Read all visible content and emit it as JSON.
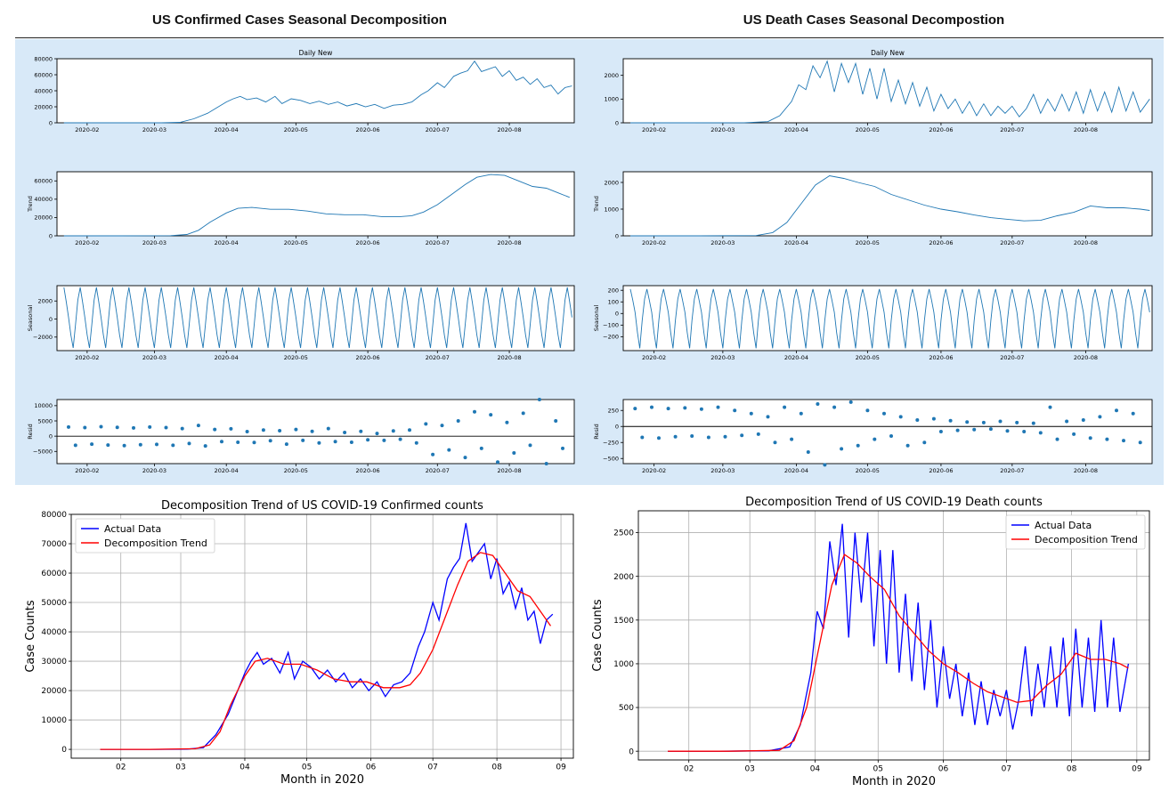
{
  "headings": {
    "left": "US Confirmed Cases Seasonal Decomposition",
    "right": "US Death Cases Seasonal Decompostion"
  },
  "colors": {
    "band": "#d8e9f8",
    "series_small": "#1f77b4",
    "actual": "#0000ff",
    "trend": "#ff0000",
    "grid": "#b0b0b0"
  },
  "chart_data": [
    {
      "id": "confirmed-daily",
      "type": "line",
      "title": "Daily New",
      "ylabel": "",
      "ylim": [
        0,
        80000
      ],
      "yticks": [
        0,
        20000,
        40000,
        60000,
        80000
      ],
      "xticks": [
        "2020-02",
        "2020-03",
        "2020-04",
        "2020-05",
        "2020-06",
        "2020-07",
        "2020-08"
      ],
      "x": [
        "2020-01-22",
        "2020-02-05",
        "2020-02-19",
        "2020-03-04",
        "2020-03-12",
        "2020-03-18",
        "2020-03-24",
        "2020-03-28",
        "2020-04-01",
        "2020-04-04",
        "2020-04-07",
        "2020-04-10",
        "2020-04-14",
        "2020-04-18",
        "2020-04-22",
        "2020-04-25",
        "2020-04-29",
        "2020-05-03",
        "2020-05-07",
        "2020-05-11",
        "2020-05-15",
        "2020-05-19",
        "2020-05-23",
        "2020-05-27",
        "2020-05-31",
        "2020-06-04",
        "2020-06-08",
        "2020-06-12",
        "2020-06-16",
        "2020-06-20",
        "2020-06-24",
        "2020-06-27",
        "2020-07-01",
        "2020-07-04",
        "2020-07-08",
        "2020-07-11",
        "2020-07-14",
        "2020-07-17",
        "2020-07-20",
        "2020-07-23",
        "2020-07-26",
        "2020-07-29",
        "2020-08-01",
        "2020-08-04",
        "2020-08-07",
        "2020-08-10",
        "2020-08-13",
        "2020-08-16",
        "2020-08-19",
        "2020-08-22",
        "2020-08-25",
        "2020-08-28"
      ],
      "y": [
        0,
        0,
        0,
        50,
        600,
        5000,
        12000,
        19000,
        26000,
        30000,
        33000,
        29000,
        31000,
        26000,
        33000,
        24000,
        30000,
        28000,
        24000,
        27000,
        23000,
        26000,
        21000,
        24000,
        20000,
        23000,
        18000,
        22000,
        23000,
        26000,
        35000,
        40000,
        50000,
        44000,
        58000,
        62000,
        65000,
        77000,
        64000,
        67000,
        70000,
        58000,
        65000,
        53000,
        57000,
        48000,
        55000,
        44000,
        47000,
        36000,
        44000,
        46000
      ]
    },
    {
      "id": "confirmed-trend",
      "type": "line",
      "title": "",
      "ylabel": "Trend",
      "ylim": [
        0,
        70000
      ],
      "yticks": [
        0,
        20000,
        40000,
        60000
      ],
      "xticks": [
        "2020-02",
        "2020-03",
        "2020-04",
        "2020-05",
        "2020-06",
        "2020-07",
        "2020-08"
      ],
      "x": [
        "2020-01-22",
        "2020-02-15",
        "2020-03-08",
        "2020-03-15",
        "2020-03-20",
        "2020-03-25",
        "2020-04-01",
        "2020-04-06",
        "2020-04-12",
        "2020-04-20",
        "2020-04-28",
        "2020-05-06",
        "2020-05-14",
        "2020-05-22",
        "2020-05-30",
        "2020-06-07",
        "2020-06-15",
        "2020-06-20",
        "2020-06-25",
        "2020-07-01",
        "2020-07-07",
        "2020-07-13",
        "2020-07-18",
        "2020-07-24",
        "2020-07-30",
        "2020-08-05",
        "2020-08-11",
        "2020-08-17",
        "2020-08-22",
        "2020-08-27"
      ],
      "y": [
        0,
        0,
        200,
        1500,
        6000,
        15000,
        25000,
        30000,
        31000,
        29000,
        29000,
        27000,
        24000,
        23000,
        23000,
        21000,
        21000,
        22000,
        26000,
        34000,
        45000,
        56000,
        64000,
        67000,
        66000,
        60000,
        54000,
        52000,
        47000,
        42000
      ]
    },
    {
      "id": "confirmed-seasonal",
      "type": "line",
      "title": "",
      "ylabel": "Seasonal",
      "ylim": [
        -3500,
        3700
      ],
      "yticks": [
        -2000,
        0,
        2000
      ],
      "xticks": [
        "2020-02",
        "2020-03",
        "2020-04",
        "2020-05",
        "2020-06",
        "2020-07",
        "2020-08"
      ],
      "period_days": 7,
      "amplitude_max": 3500,
      "amplitude_min": -3200
    },
    {
      "id": "confirmed-resid",
      "type": "scatter",
      "title": "",
      "ylabel": "Resid",
      "ylim": [
        -9000,
        12000
      ],
      "yticks": [
        -5000,
        0,
        5000,
        10000
      ],
      "xticks": [
        "2020-02",
        "2020-03",
        "2020-04",
        "2020-05",
        "2020-06",
        "2020-07",
        "2020-08"
      ],
      "x": [
        "2020-01-24",
        "2020-01-27",
        "2020-01-31",
        "2020-02-03",
        "2020-02-07",
        "2020-02-10",
        "2020-02-14",
        "2020-02-17",
        "2020-02-21",
        "2020-02-24",
        "2020-02-28",
        "2020-03-02",
        "2020-03-06",
        "2020-03-09",
        "2020-03-13",
        "2020-03-16",
        "2020-03-20",
        "2020-03-23",
        "2020-03-27",
        "2020-03-30",
        "2020-04-03",
        "2020-04-06",
        "2020-04-10",
        "2020-04-13",
        "2020-04-17",
        "2020-04-20",
        "2020-04-24",
        "2020-04-27",
        "2020-05-01",
        "2020-05-04",
        "2020-05-08",
        "2020-05-11",
        "2020-05-15",
        "2020-05-18",
        "2020-05-22",
        "2020-05-25",
        "2020-05-29",
        "2020-06-01",
        "2020-06-05",
        "2020-06-08",
        "2020-06-12",
        "2020-06-15",
        "2020-06-19",
        "2020-06-22",
        "2020-06-26",
        "2020-06-29",
        "2020-07-03",
        "2020-07-06",
        "2020-07-10",
        "2020-07-13",
        "2020-07-17",
        "2020-07-20",
        "2020-07-24",
        "2020-07-27",
        "2020-07-31",
        "2020-08-03",
        "2020-08-07",
        "2020-08-10",
        "2020-08-14",
        "2020-08-17",
        "2020-08-21",
        "2020-08-24"
      ],
      "y": [
        3000,
        -3000,
        2800,
        -2600,
        3100,
        -2900,
        2900,
        -3100,
        2700,
        -2800,
        3000,
        -2700,
        2800,
        -3000,
        2500,
        -2400,
        3500,
        -3200,
        2200,
        -1800,
        2400,
        -2000,
        1500,
        -2100,
        2000,
        -1500,
        1800,
        -2600,
        2200,
        -1400,
        1600,
        -2200,
        2500,
        -1800,
        1200,
        -2000,
        1600,
        -1200,
        900,
        -1400,
        1700,
        -1000,
        2000,
        -2200,
        4000,
        -6000,
        3500,
        -4500,
        5000,
        -7000,
        8000,
        -4000,
        7000,
        -8500,
        4500,
        -5500,
        7500,
        -3000,
        12000,
        -9000,
        5000,
        -4000
      ]
    },
    {
      "id": "death-daily",
      "type": "line",
      "title": "Daily New",
      "ylabel": "",
      "ylim": [
        0,
        2700
      ],
      "yticks": [
        0,
        1000,
        2000
      ],
      "xticks": [
        "2020-02",
        "2020-03",
        "2020-04",
        "2020-05",
        "2020-06",
        "2020-07",
        "2020-08"
      ],
      "x": [
        "2020-01-22",
        "2020-02-15",
        "2020-03-10",
        "2020-03-20",
        "2020-03-25",
        "2020-03-30",
        "2020-04-02",
        "2020-04-05",
        "2020-04-08",
        "2020-04-11",
        "2020-04-14",
        "2020-04-17",
        "2020-04-20",
        "2020-04-23",
        "2020-04-26",
        "2020-04-29",
        "2020-05-02",
        "2020-05-05",
        "2020-05-08",
        "2020-05-11",
        "2020-05-14",
        "2020-05-17",
        "2020-05-20",
        "2020-05-23",
        "2020-05-26",
        "2020-05-29",
        "2020-06-01",
        "2020-06-04",
        "2020-06-07",
        "2020-06-10",
        "2020-06-13",
        "2020-06-16",
        "2020-06-19",
        "2020-06-22",
        "2020-06-25",
        "2020-06-28",
        "2020-07-01",
        "2020-07-04",
        "2020-07-07",
        "2020-07-10",
        "2020-07-13",
        "2020-07-16",
        "2020-07-19",
        "2020-07-22",
        "2020-07-25",
        "2020-07-28",
        "2020-07-31",
        "2020-08-03",
        "2020-08-06",
        "2020-08-09",
        "2020-08-12",
        "2020-08-15",
        "2020-08-18",
        "2020-08-21",
        "2020-08-24",
        "2020-08-28"
      ],
      "y": [
        0,
        0,
        5,
        50,
        300,
        900,
        1600,
        1400,
        2400,
        1900,
        2600,
        1300,
        2500,
        1700,
        2500,
        1200,
        2300,
        1000,
        2300,
        900,
        1800,
        800,
        1700,
        700,
        1500,
        500,
        1200,
        600,
        1000,
        400,
        900,
        300,
        800,
        300,
        700,
        400,
        700,
        250,
        600,
        1200,
        400,
        1000,
        500,
        1200,
        500,
        1300,
        400,
        1400,
        500,
        1300,
        450,
        1500,
        500,
        1300,
        450,
        1000
      ]
    },
    {
      "id": "death-trend",
      "type": "line",
      "title": "",
      "ylabel": "Trend",
      "ylim": [
        0,
        2400
      ],
      "yticks": [
        0,
        1000,
        2000
      ],
      "xticks": [
        "2020-02",
        "2020-03",
        "2020-04",
        "2020-05",
        "2020-06",
        "2020-07",
        "2020-08"
      ],
      "x": [
        "2020-01-22",
        "2020-02-20",
        "2020-03-15",
        "2020-03-22",
        "2020-03-28",
        "2020-04-03",
        "2020-04-09",
        "2020-04-15",
        "2020-04-21",
        "2020-04-27",
        "2020-05-04",
        "2020-05-11",
        "2020-05-18",
        "2020-05-25",
        "2020-06-01",
        "2020-06-08",
        "2020-06-15",
        "2020-06-22",
        "2020-06-29",
        "2020-07-06",
        "2020-07-13",
        "2020-07-20",
        "2020-07-27",
        "2020-08-03",
        "2020-08-10",
        "2020-08-17",
        "2020-08-24",
        "2020-08-28"
      ],
      "y": [
        0,
        0,
        10,
        120,
        500,
        1200,
        1900,
        2250,
        2150,
        2000,
        1850,
        1550,
        1350,
        1150,
        1000,
        900,
        780,
        680,
        620,
        560,
        580,
        750,
        880,
        1120,
        1050,
        1050,
        1000,
        950
      ]
    },
    {
      "id": "death-seasonal",
      "type": "line",
      "title": "",
      "ylabel": "Seasonal",
      "ylim": [
        -320,
        240
      ],
      "yticks": [
        -200,
        -100,
        0,
        100,
        200
      ],
      "xticks": [
        "2020-02",
        "2020-03",
        "2020-04",
        "2020-05",
        "2020-06",
        "2020-07",
        "2020-08"
      ],
      "period_days": 7,
      "amplitude_max": 210,
      "amplitude_min": -300
    },
    {
      "id": "death-resid",
      "type": "scatter",
      "title": "",
      "ylabel": "Resid",
      "ylim": [
        -580,
        420
      ],
      "yticks": [
        -500,
        -250,
        0,
        250
      ],
      "xticks": [
        "2020-02",
        "2020-03",
        "2020-04",
        "2020-05",
        "2020-06",
        "2020-07",
        "2020-08"
      ],
      "x": [
        "2020-01-24",
        "2020-01-27",
        "2020-01-31",
        "2020-02-03",
        "2020-02-07",
        "2020-02-10",
        "2020-02-14",
        "2020-02-17",
        "2020-02-21",
        "2020-02-24",
        "2020-02-28",
        "2020-03-02",
        "2020-03-06",
        "2020-03-09",
        "2020-03-13",
        "2020-03-16",
        "2020-03-20",
        "2020-03-23",
        "2020-03-27",
        "2020-03-30",
        "2020-04-03",
        "2020-04-06",
        "2020-04-10",
        "2020-04-13",
        "2020-04-17",
        "2020-04-20",
        "2020-04-24",
        "2020-04-27",
        "2020-05-01",
        "2020-05-04",
        "2020-05-08",
        "2020-05-11",
        "2020-05-15",
        "2020-05-18",
        "2020-05-22",
        "2020-05-25",
        "2020-05-29",
        "2020-06-01",
        "2020-06-05",
        "2020-06-08",
        "2020-06-12",
        "2020-06-15",
        "2020-06-19",
        "2020-06-22",
        "2020-06-26",
        "2020-06-29",
        "2020-07-03",
        "2020-07-06",
        "2020-07-10",
        "2020-07-13",
        "2020-07-17",
        "2020-07-20",
        "2020-07-24",
        "2020-07-27",
        "2020-07-31",
        "2020-08-03",
        "2020-08-07",
        "2020-08-10",
        "2020-08-14",
        "2020-08-17",
        "2020-08-21",
        "2020-08-24"
      ],
      "y": [
        280,
        -170,
        300,
        -180,
        280,
        -160,
        290,
        -150,
        270,
        -170,
        300,
        -160,
        250,
        -140,
        200,
        -120,
        150,
        -250,
        300,
        -200,
        200,
        -400,
        350,
        -600,
        300,
        -350,
        380,
        -300,
        250,
        -200,
        200,
        -150,
        150,
        -300,
        100,
        -250,
        120,
        -80,
        90,
        -60,
        70,
        -50,
        60,
        -40,
        80,
        -70,
        60,
        -80,
        50,
        -100,
        300,
        -200,
        80,
        -120,
        100,
        -180,
        150,
        -200,
        250,
        -220,
        200,
        -250
      ]
    },
    {
      "id": "confirmed-comparison",
      "type": "line",
      "title": "Decomposition Trend of US COVID-19 Confirmed counts",
      "xlabel": "Month in 2020",
      "ylabel": "Case Counts",
      "ylim": [
        -3000,
        80000
      ],
      "yticks": [
        0,
        10000,
        20000,
        30000,
        40000,
        50000,
        60000,
        70000,
        80000
      ],
      "xlim": [
        "2020-01-08",
        "2020-09-07"
      ],
      "xticks": [
        "02",
        "03",
        "04",
        "05",
        "06",
        "07",
        "08",
        "09"
      ],
      "legend_position": "upper-left",
      "series": [
        {
          "name": "Actual Data",
          "ref": "confirmed-daily"
        },
        {
          "name": "Decomposition Trend",
          "ref": "confirmed-trend"
        }
      ]
    },
    {
      "id": "death-comparison",
      "type": "line",
      "title": "Decomposition Trend of US COVID-19 Death counts",
      "xlabel": "Month in 2020",
      "ylabel": "Case Counts",
      "ylim": [
        -100,
        2750
      ],
      "yticks": [
        0,
        500,
        1000,
        1500,
        2000,
        2500
      ],
      "xlim": [
        "2020-01-08",
        "2020-09-07"
      ],
      "xticks": [
        "02",
        "03",
        "04",
        "05",
        "06",
        "07",
        "08",
        "09"
      ],
      "legend_position": "upper-right",
      "series": [
        {
          "name": "Actual Data",
          "ref": "death-daily"
        },
        {
          "name": "Decomposition Trend",
          "ref": "death-trend"
        }
      ]
    }
  ]
}
